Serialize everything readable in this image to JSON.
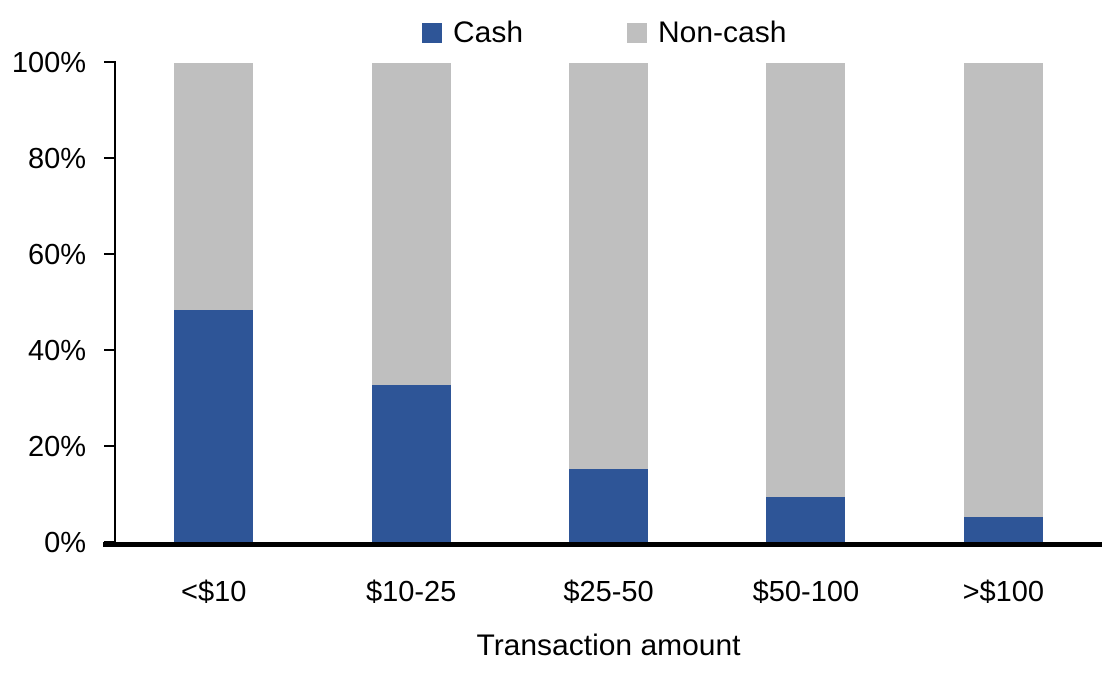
{
  "chart_data": {
    "type": "bar",
    "stacked": true,
    "title": "",
    "categories": [
      "<$10",
      "$10-25",
      "$25-50",
      "$50-100",
      ">$100"
    ],
    "series": [
      {
        "name": "Cash",
        "color": "#2E5597",
        "values": [
          48.5,
          33,
          15.5,
          9.5,
          5.5
        ]
      },
      {
        "name": "Non-cash",
        "color": "#BFBFBF",
        "values": [
          51.5,
          67,
          84.5,
          90.5,
          94.5
        ]
      }
    ],
    "xlabel": "Transaction amount",
    "ylabel": "",
    "ylim": [
      0,
      100
    ],
    "y_ticks": [
      "0%",
      "20%",
      "40%",
      "60%",
      "80%",
      "100%"
    ],
    "legend_position": "top",
    "grid": false,
    "axis_color": "#000000",
    "background_color": "#FFFFFF"
  }
}
